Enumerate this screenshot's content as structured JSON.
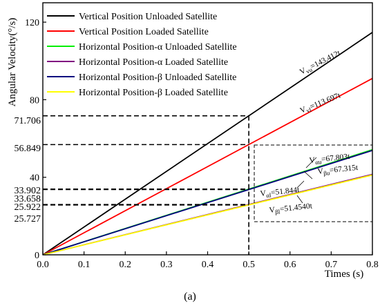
{
  "chart_data": {
    "type": "line",
    "xlabel": "Times (s)",
    "ylabel": "Angular Velocity(°/s)",
    "caption": "(a)",
    "xlim": [
      0,
      0.8
    ],
    "ylim": [
      0,
      130
    ],
    "x_ticks": [
      "0.0",
      "0.1",
      "0.2",
      "0.3",
      "0.4",
      "0.5",
      "0.6",
      "0.7",
      "0.8"
    ],
    "x_tick_values": [
      0,
      0.1,
      0.2,
      0.3,
      0.4,
      0.5,
      0.6,
      0.7,
      0.8
    ],
    "y_ticks": [
      "0",
      "40",
      "80",
      "120"
    ],
    "y_tick_values": [
      0,
      40,
      80,
      120
    ],
    "ref_x": 0.5,
    "ref_values": [
      {
        "label": "71.706",
        "value": 71.706
      },
      {
        "label": "56.849",
        "value": 56.849
      },
      {
        "label": "33.902",
        "value": 33.902
      },
      {
        "label": "33.658",
        "value": 33.658
      },
      {
        "label": "25.922",
        "value": 25.922
      },
      {
        "label": "25.727",
        "value": 25.727
      }
    ],
    "legend_position": "top-left",
    "series": [
      {
        "name": "Vertical Position Unloaded  Satellite",
        "slope": 143.412,
        "color": "#000000",
        "x": [
          0,
          0.8
        ],
        "y": [
          0,
          114.73
        ]
      },
      {
        "name": "Vertical Position Loaded  Satellite",
        "slope": 113.697,
        "color": "#ff0000",
        "x": [
          0,
          0.8
        ],
        "y": [
          0,
          90.96
        ]
      },
      {
        "name": "Horizontal Position-α Unloaded  Satellite",
        "slope": 67.803,
        "color": "#00ee00",
        "x": [
          0,
          0.8
        ],
        "y": [
          0,
          54.24
        ]
      },
      {
        "name": "Horizontal Position-α Loaded  Satellite",
        "slope": 51.844,
        "color": "#800080",
        "x": [
          0,
          0.8
        ],
        "y": [
          0,
          41.48
        ]
      },
      {
        "name": "Horizontal Position-β Unloaded  Satellite",
        "slope": 67.315,
        "color": "#00007f",
        "x": [
          0,
          0.8
        ],
        "y": [
          0,
          53.85
        ]
      },
      {
        "name": "Horizontal Position-β Loaded  Satellite",
        "slope": 51.454,
        "color": "#ffff00",
        "x": [
          0,
          0.8
        ],
        "y": [
          0,
          41.16
        ]
      }
    ],
    "annotations": [
      {
        "base": "V",
        "sub": "vu",
        "rest": "=143.412t"
      },
      {
        "base": "V",
        "sub": "vl",
        "rest": "=113.697t"
      },
      {
        "base": "V",
        "sub": "αu",
        "rest": "=67.803t"
      },
      {
        "base": "V",
        "sub": "βu",
        "rest": "=67.315t"
      },
      {
        "base": "V",
        "sub": "αl",
        "rest": "=51.844t"
      },
      {
        "base": "V",
        "sub": "βl",
        "rest": "=51.4540t"
      }
    ]
  }
}
